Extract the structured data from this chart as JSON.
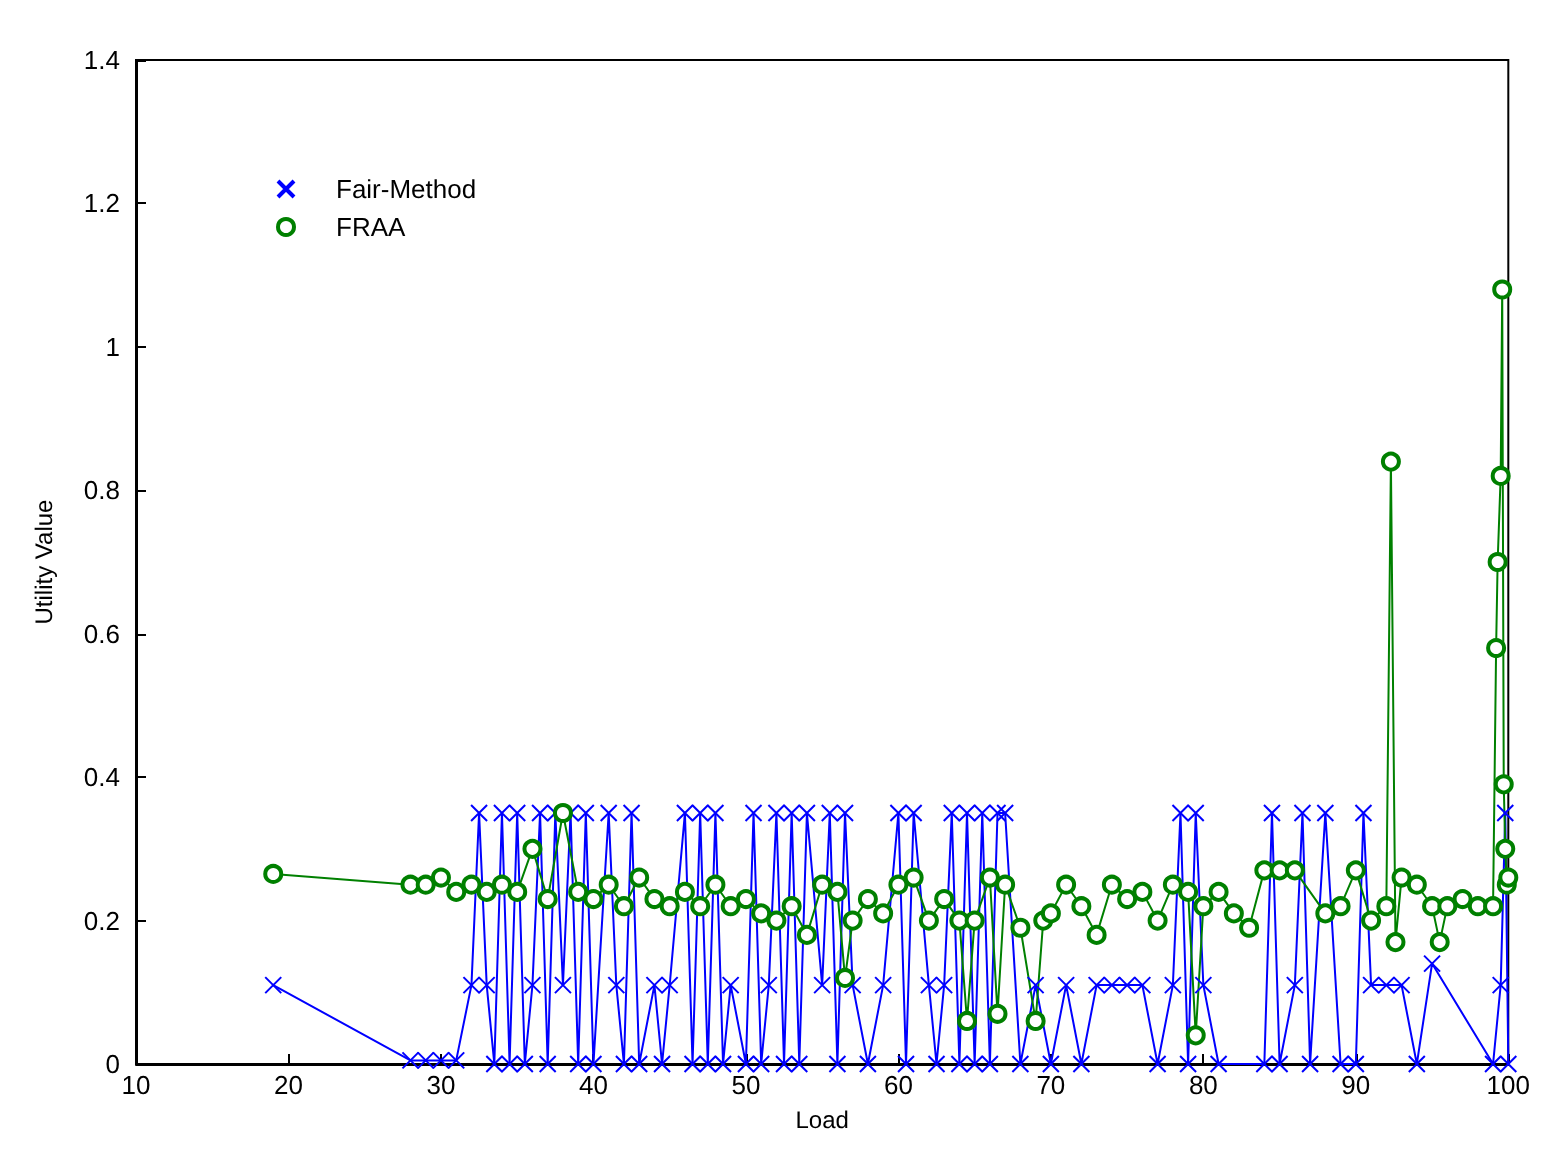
{
  "chart_data": {
    "type": "line",
    "xlabel": "Load",
    "ylabel": "Utility Value",
    "xlim": [
      10,
      100
    ],
    "xticks": [
      10,
      20,
      30,
      40,
      50,
      60,
      70,
      80,
      90,
      100
    ],
    "ylim": [
      0,
      1.4
    ],
    "yticks": [
      0,
      0.2,
      0.4,
      0.6,
      0.8,
      1,
      1.2,
      1.4
    ],
    "grid": false,
    "legend": "top left",
    "series": [
      {
        "name": "Fair-Method",
        "color": "#0000ff",
        "marker": "cross",
        "x": [
          19,
          28,
          29,
          30,
          31,
          32,
          32.5,
          33,
          33.5,
          34,
          34.5,
          35,
          35.5,
          36,
          36.5,
          37,
          37.5,
          38,
          38.5,
          39,
          39.5,
          40,
          41,
          41.5,
          42,
          42.5,
          43,
          44,
          44.5,
          45,
          46,
          46.5,
          47,
          47.5,
          48,
          48.5,
          49,
          50,
          50.5,
          51,
          51.5,
          52,
          52.5,
          53,
          53.5,
          54,
          55,
          55.5,
          56,
          56.5,
          57,
          58,
          59,
          60,
          60.5,
          61,
          62,
          62.5,
          63,
          63.5,
          64,
          64.5,
          65,
          65.5,
          66,
          66.5,
          67,
          68,
          69,
          70,
          71,
          72,
          73,
          74,
          75,
          76,
          77,
          78,
          78.5,
          79,
          79.5,
          80,
          81,
          84,
          84.5,
          85,
          86,
          86.5,
          87,
          88,
          89,
          90,
          90.5,
          91,
          92,
          93,
          94,
          95,
          99,
          99.5,
          99.8,
          100
        ],
        "values": [
          0.11,
          0.005,
          0.005,
          0.005,
          0.005,
          0.11,
          0.35,
          0.11,
          0,
          0.35,
          0,
          0.35,
          0,
          0.11,
          0.35,
          0,
          0.35,
          0.11,
          0.35,
          0,
          0.35,
          0,
          0.35,
          0.11,
          0,
          0.35,
          0,
          0.11,
          0,
          0.11,
          0.35,
          0,
          0.35,
          0,
          0.35,
          0,
          0.11,
          0,
          0.35,
          0,
          0.11,
          0.35,
          0,
          0.35,
          0,
          0.35,
          0.11,
          0.35,
          0,
          0.35,
          0.11,
          0,
          0.11,
          0.35,
          0,
          0.35,
          0.11,
          0,
          0.11,
          0.35,
          0,
          0.35,
          0,
          0.35,
          0,
          0.35,
          0.35,
          0,
          0.11,
          0,
          0.11,
          0,
          0.11,
          0.11,
          0.11,
          0.11,
          0,
          0.11,
          0.35,
          0,
          0.35,
          0.11,
          0,
          0,
          0.35,
          0,
          0.11,
          0.35,
          0,
          0.35,
          0,
          0,
          0.35,
          0.11,
          0.11,
          0.11,
          0,
          0.14,
          0,
          0.11,
          0.35,
          0
        ]
      },
      {
        "name": "FRAA",
        "color": "#008000",
        "marker": "circle",
        "x": [
          19,
          28,
          29,
          30,
          31,
          32,
          33,
          34,
          35,
          36,
          37,
          38,
          39,
          40,
          41,
          42,
          43,
          44,
          45,
          46,
          47,
          48,
          49,
          50,
          51,
          52,
          53,
          54,
          55,
          56,
          56.5,
          57,
          58,
          59,
          60,
          61,
          62,
          63,
          64,
          64.5,
          65,
          66,
          66.5,
          67,
          68,
          69,
          69.5,
          70,
          71,
          72,
          73,
          74,
          75,
          76,
          77,
          78,
          79,
          79.5,
          80,
          81,
          82,
          83,
          84,
          85,
          86,
          88,
          89,
          90,
          91,
          92,
          92.3,
          92.6,
          93,
          94,
          95,
          95.5,
          96,
          97,
          98,
          99,
          99.2,
          99.3,
          99.5,
          99.6,
          99.7,
          99.8,
          99.9,
          100
        ],
        "values": [
          0.265,
          0.25,
          0.25,
          0.26,
          0.24,
          0.25,
          0.24,
          0.25,
          0.24,
          0.3,
          0.23,
          0.35,
          0.24,
          0.23,
          0.25,
          0.22,
          0.26,
          0.23,
          0.22,
          0.24,
          0.22,
          0.25,
          0.22,
          0.23,
          0.21,
          0.2,
          0.22,
          0.18,
          0.25,
          0.24,
          0.12,
          0.2,
          0.23,
          0.21,
          0.25,
          0.26,
          0.2,
          0.23,
          0.2,
          0.06,
          0.2,
          0.26,
          0.07,
          0.25,
          0.19,
          0.06,
          0.2,
          0.21,
          0.25,
          0.22,
          0.18,
          0.25,
          0.23,
          0.24,
          0.2,
          0.25,
          0.24,
          0.04,
          0.22,
          0.24,
          0.21,
          0.19,
          0.27,
          0.27,
          0.27,
          0.21,
          0.22,
          0.27,
          0.2,
          0.22,
          0.84,
          0.17,
          0.26,
          0.25,
          0.22,
          0.17,
          0.22,
          0.23,
          0.22,
          0.22,
          0.58,
          0.7,
          0.82,
          1.08,
          0.39,
          0.3,
          0.25,
          0.26
        ]
      }
    ]
  }
}
